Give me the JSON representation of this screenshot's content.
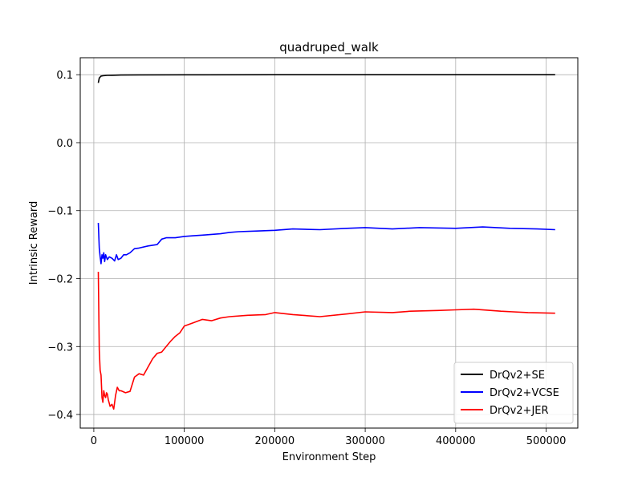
{
  "chart_data": {
    "type": "line",
    "title": "quadruped_walk",
    "xlabel": "Environment Step",
    "ylabel": "Intrinsic  Reward",
    "xlim": [
      -15000,
      535000
    ],
    "ylim": [
      -0.42,
      0.125
    ],
    "xticks": [
      0,
      100000,
      200000,
      300000,
      400000,
      500000
    ],
    "xtick_labels": [
      "0",
      "100000",
      "200000",
      "300000",
      "400000",
      "500000"
    ],
    "yticks": [
      0.1,
      0.0,
      -0.1,
      -0.2,
      -0.3,
      -0.4
    ],
    "ytick_labels": [
      "0.1",
      "0.0",
      "−0.1",
      "−0.2",
      "−0.3",
      "−0.4"
    ],
    "grid": true,
    "legend_position": "lower-right",
    "series": [
      {
        "name": "DrQv2+SE",
        "color": "#000000",
        "x": [
          5000,
          6000,
          8000,
          10000,
          15000,
          20000,
          30000,
          50000,
          100000,
          200000,
          300000,
          400000,
          510000
        ],
        "y": [
          0.088,
          0.095,
          0.098,
          0.0985,
          0.099,
          0.0992,
          0.0995,
          0.0998,
          0.0999,
          0.1,
          0.1,
          0.1,
          0.1
        ]
      },
      {
        "name": "DrQv2+VCSE",
        "color": "#0000ff",
        "x": [
          5000,
          6000,
          7000,
          8000,
          9000,
          10000,
          11000,
          12000,
          13000,
          15000,
          17000,
          20000,
          23000,
          25000,
          27000,
          30000,
          33000,
          36000,
          40000,
          45000,
          50000,
          60000,
          70000,
          75000,
          80000,
          90000,
          100000,
          110000,
          120000,
          130000,
          140000,
          150000,
          160000,
          180000,
          200000,
          220000,
          250000,
          280000,
          300000,
          330000,
          360000,
          400000,
          430000,
          460000,
          490000,
          510000
        ],
        "y": [
          -0.118,
          -0.155,
          -0.168,
          -0.178,
          -0.165,
          -0.17,
          -0.162,
          -0.175,
          -0.165,
          -0.172,
          -0.168,
          -0.17,
          -0.174,
          -0.165,
          -0.172,
          -0.17,
          -0.165,
          -0.165,
          -0.162,
          -0.156,
          -0.155,
          -0.152,
          -0.15,
          -0.142,
          -0.14,
          -0.14,
          -0.138,
          -0.137,
          -0.136,
          -0.135,
          -0.134,
          -0.132,
          -0.131,
          -0.13,
          -0.129,
          -0.127,
          -0.128,
          -0.126,
          -0.125,
          -0.127,
          -0.125,
          -0.126,
          -0.124,
          -0.126,
          -0.127,
          -0.128
        ]
      },
      {
        "name": "DrQv2+JER",
        "color": "#ff0000",
        "x": [
          5000,
          6000,
          7000,
          8000,
          9000,
          10000,
          11000,
          12000,
          13000,
          14000,
          15000,
          16000,
          18000,
          20000,
          22000,
          24000,
          26000,
          28000,
          30000,
          35000,
          40000,
          45000,
          50000,
          55000,
          60000,
          65000,
          70000,
          75000,
          80000,
          85000,
          90000,
          95000,
          100000,
          110000,
          120000,
          130000,
          140000,
          150000,
          170000,
          190000,
          200000,
          220000,
          250000,
          280000,
          300000,
          330000,
          350000,
          380000,
          400000,
          420000,
          450000,
          480000,
          510000
        ],
        "y": [
          -0.19,
          -0.305,
          -0.335,
          -0.342,
          -0.375,
          -0.382,
          -0.365,
          -0.372,
          -0.375,
          -0.368,
          -0.37,
          -0.378,
          -0.388,
          -0.385,
          -0.392,
          -0.372,
          -0.36,
          -0.365,
          -0.365,
          -0.368,
          -0.366,
          -0.345,
          -0.34,
          -0.342,
          -0.33,
          -0.318,
          -0.31,
          -0.308,
          -0.3,
          -0.292,
          -0.285,
          -0.28,
          -0.27,
          -0.265,
          -0.26,
          -0.262,
          -0.258,
          -0.256,
          -0.254,
          -0.253,
          -0.25,
          -0.253,
          -0.256,
          -0.252,
          -0.249,
          -0.25,
          -0.248,
          -0.247,
          -0.246,
          -0.245,
          -0.248,
          -0.25,
          -0.251
        ]
      }
    ]
  }
}
